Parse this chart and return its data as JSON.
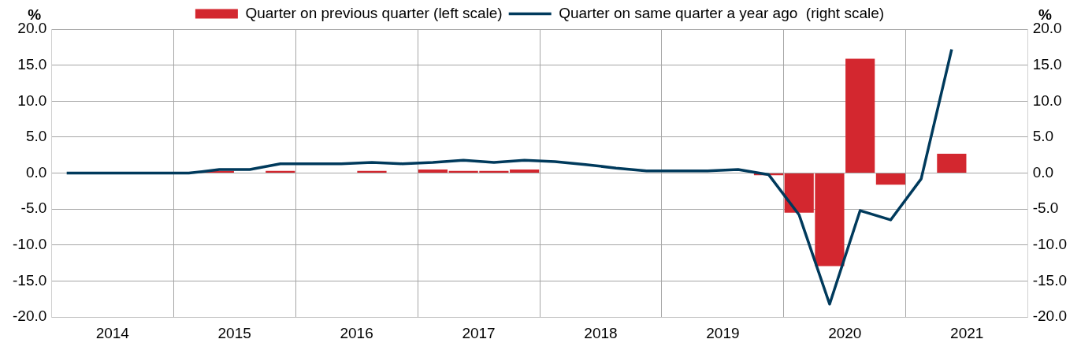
{
  "chart_data": {
    "type": "bar",
    "ylabel": "%",
    "y2label": "%",
    "x": [
      2014.125,
      2014.375,
      2014.625,
      2014.875,
      2015.125,
      2015.375,
      2015.625,
      2015.875,
      2016.125,
      2016.375,
      2016.625,
      2016.875,
      2017.125,
      2017.375,
      2017.625,
      2017.875,
      2018.125,
      2018.375,
      2018.625,
      2018.875,
      2019.125,
      2019.375,
      2019.625,
      2019.875,
      2020.125,
      2020.375,
      2020.625,
      2020.875,
      2021.125,
      2021.375
    ],
    "xlim": [
      2014,
      2022
    ],
    "xticks": [
      {
        "value": 2014.5,
        "label": "2014"
      },
      {
        "value": 2015,
        "label": null
      },
      {
        "value": 2015.5,
        "label": "2015"
      },
      {
        "value": 2016,
        "label": null
      },
      {
        "value": 2016.5,
        "label": "2016"
      },
      {
        "value": 2017,
        "label": null
      },
      {
        "value": 2017.5,
        "label": "2017"
      },
      {
        "value": 2018,
        "label": null
      },
      {
        "value": 2018.5,
        "label": "2018"
      },
      {
        "value": 2019,
        "label": null
      },
      {
        "value": 2019.5,
        "label": "2019"
      },
      {
        "value": 2020,
        "label": null
      },
      {
        "value": 2020.5,
        "label": "2020"
      },
      {
        "value": 2021,
        "label": null
      },
      {
        "value": 2021.5,
        "label": "2021"
      }
    ],
    "series": [
      {
        "name": "Quarter on previous quarter (left scale)",
        "color": "#d3272f",
        "values": [
          0,
          0,
          0,
          0,
          0,
          0.3,
          0,
          0.3,
          0,
          0,
          0.3,
          0,
          0.5,
          0.3,
          0.3,
          0.5,
          0,
          0,
          0,
          0,
          0,
          0,
          0,
          -0.3,
          -5.5,
          -12.9,
          15.9,
          -1.6,
          0,
          2.7
        ]
      },
      {
        "name": "Quarter on same quarter a year ago  (right scale)",
        "type": "line",
        "axis": "y2",
        "color": "#003a5c",
        "values": [
          0,
          0,
          0,
          0,
          0,
          0.5,
          0.5,
          1.3,
          1.3,
          1.3,
          1.5,
          1.3,
          1.5,
          1.8,
          1.5,
          1.8,
          1.6,
          1.2,
          0.7,
          0.3,
          0.3,
          0.3,
          0.5,
          -0.2,
          -5.8,
          -18.2,
          -5.2,
          -6.5,
          -0.8,
          17.2
        ]
      }
    ],
    "ylim": [
      -20,
      20
    ],
    "yticks": [
      {
        "value": -20,
        "label": "-20.0"
      },
      {
        "value": -15,
        "label": "-15.0"
      },
      {
        "value": -10,
        "label": "-10.0"
      },
      {
        "value": -5,
        "label": "-5.0"
      },
      {
        "value": 0,
        "label": "0.0"
      },
      {
        "value": 5,
        "label": "5.0"
      },
      {
        "value": 10,
        "label": "10.0"
      },
      {
        "value": 15,
        "label": "15.0"
      },
      {
        "value": 20,
        "label": "20.0"
      }
    ],
    "y2lim": [
      -20,
      20
    ],
    "y2ticks": [
      {
        "value": -20,
        "label": "-20.0"
      },
      {
        "value": -15,
        "label": "-15.0"
      },
      {
        "value": -10,
        "label": "-10.0"
      },
      {
        "value": -5,
        "label": "-5.0"
      },
      {
        "value": 0,
        "label": "0.0"
      },
      {
        "value": 5,
        "label": "5.0"
      },
      {
        "value": 10,
        "label": "10.0"
      },
      {
        "value": 15,
        "label": "15.0"
      },
      {
        "value": 20,
        "label": "20.0"
      }
    ],
    "grid": true,
    "legend": "top",
    "marker": "none",
    "line_style": "solid"
  }
}
